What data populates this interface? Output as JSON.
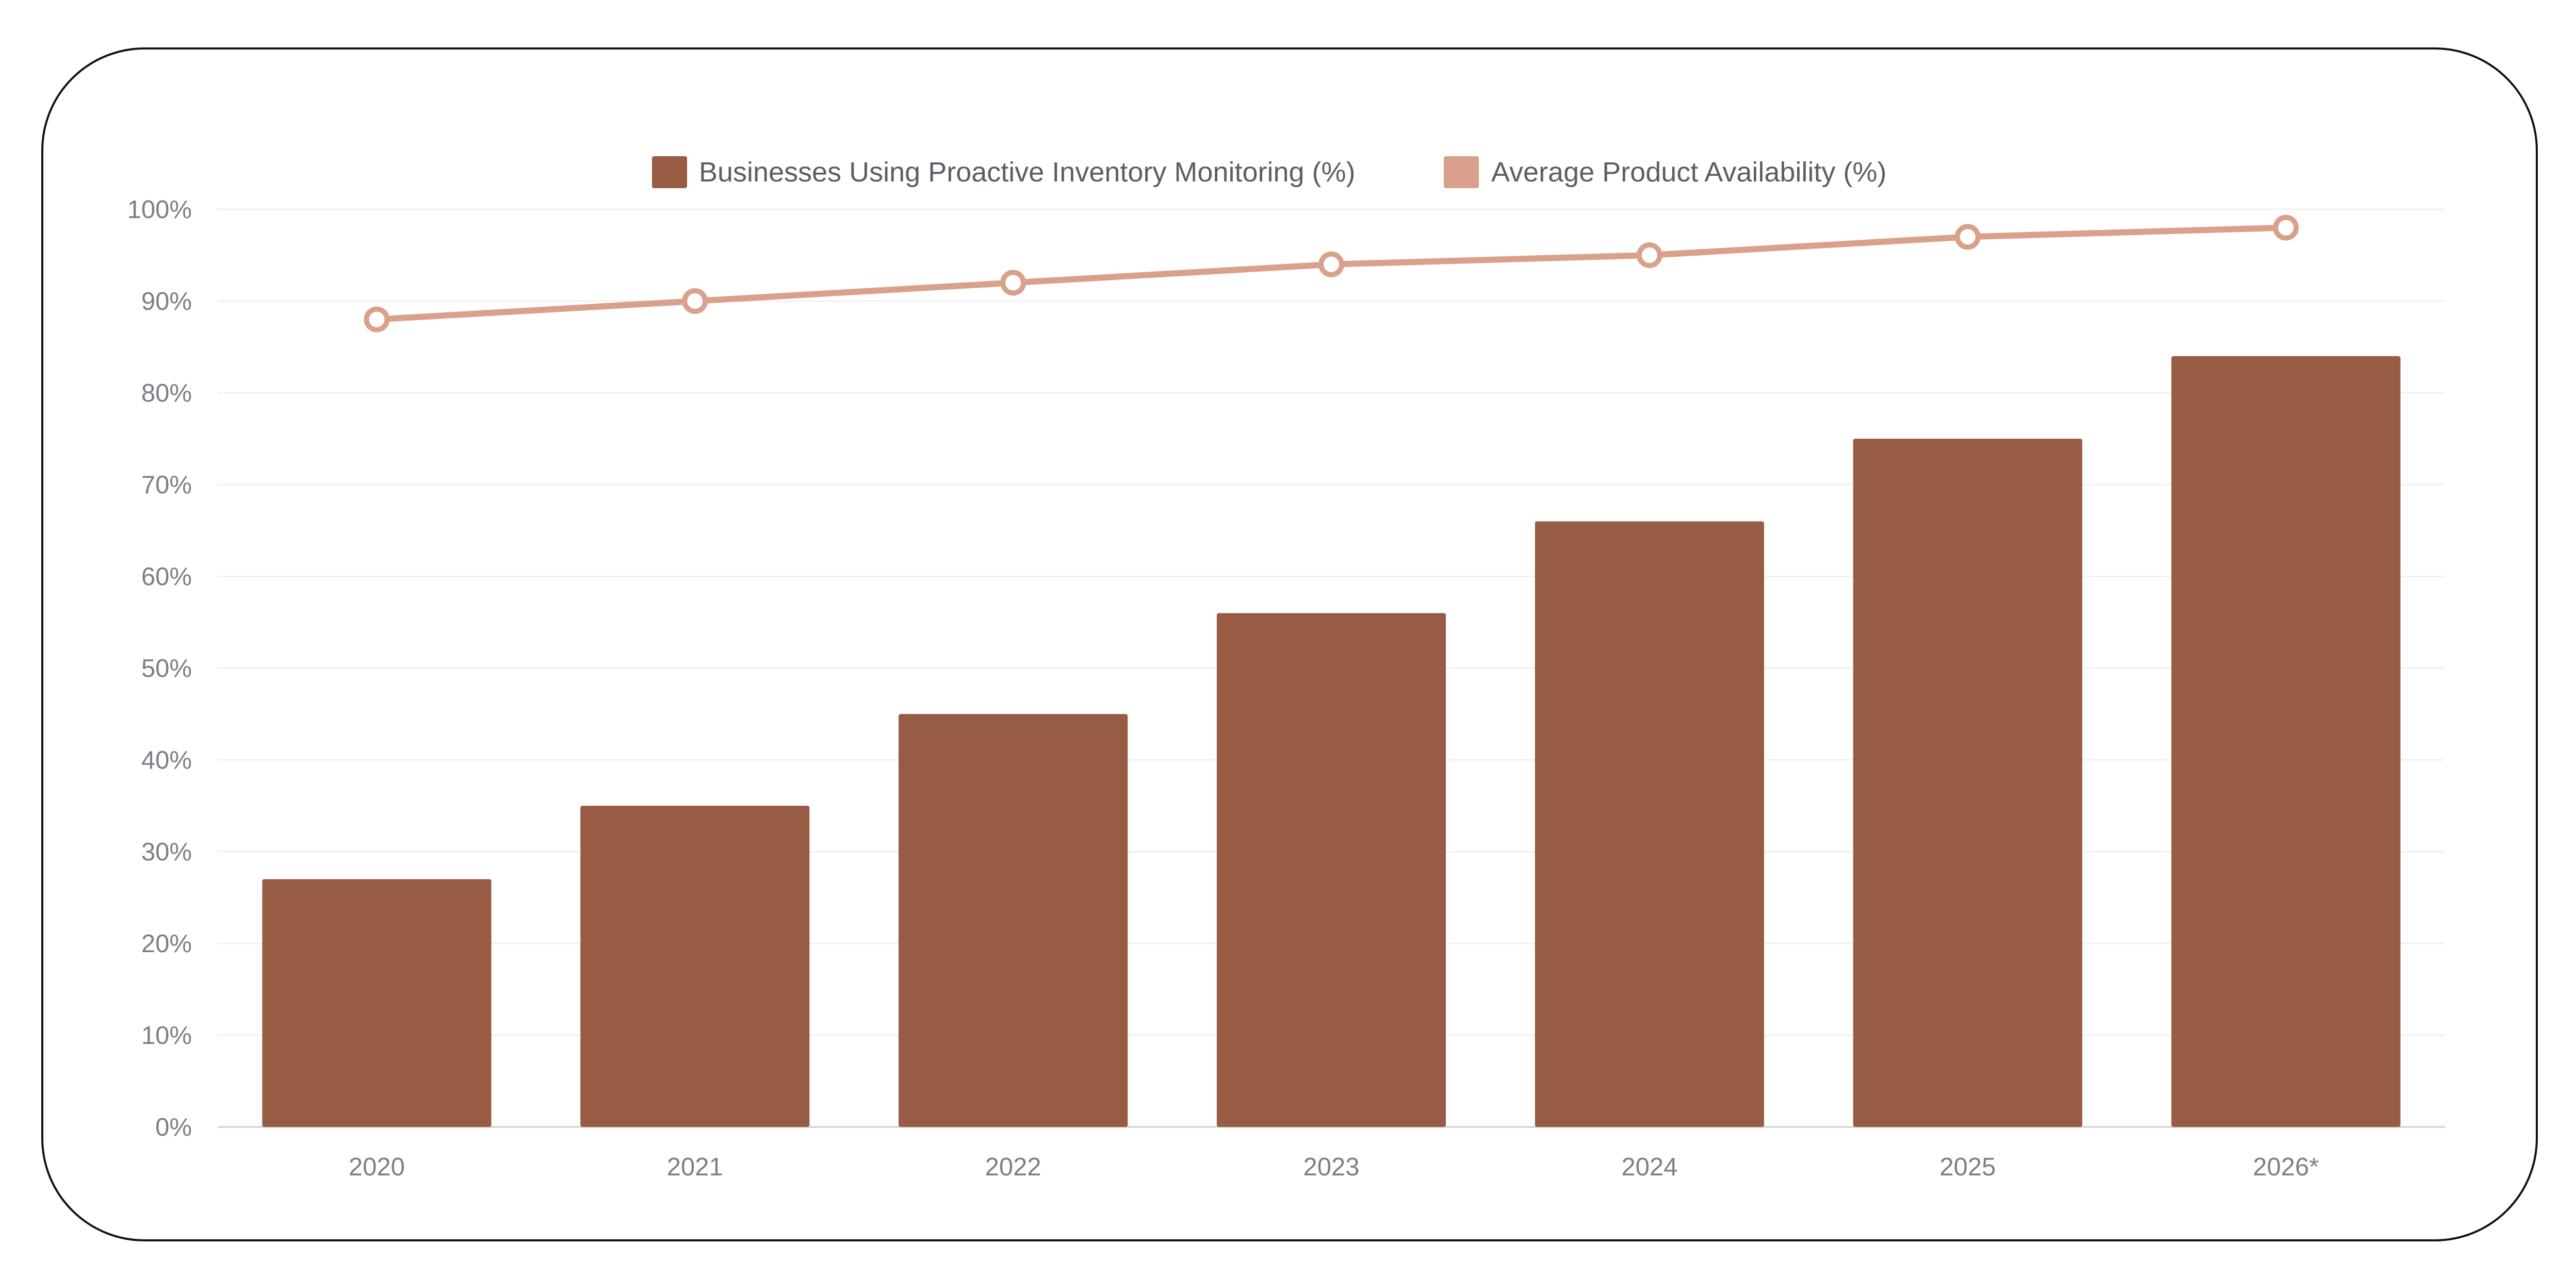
{
  "chart_data": {
    "type": "bar",
    "categories": [
      "2020",
      "2021",
      "2022",
      "2023",
      "2024",
      "2025",
      "2026*"
    ],
    "series": [
      {
        "name": "Businesses Using Proactive Inventory Monitoring (%)",
        "type": "bar",
        "values": [
          27,
          35,
          45,
          56,
          66,
          75,
          84
        ],
        "color": "#985b43"
      },
      {
        "name": "Average Product Availability (%)",
        "type": "line",
        "values": [
          88,
          90,
          92,
          94,
          95,
          97,
          98
        ],
        "color": "#d9a08b"
      }
    ],
    "y_ticks": [
      "0%",
      "10%",
      "20%",
      "30%",
      "40%",
      "50%",
      "60%",
      "70%",
      "80%",
      "90%",
      "100%"
    ],
    "ylim": [
      0,
      100
    ],
    "legend_position": "top-center",
    "grid": true
  }
}
